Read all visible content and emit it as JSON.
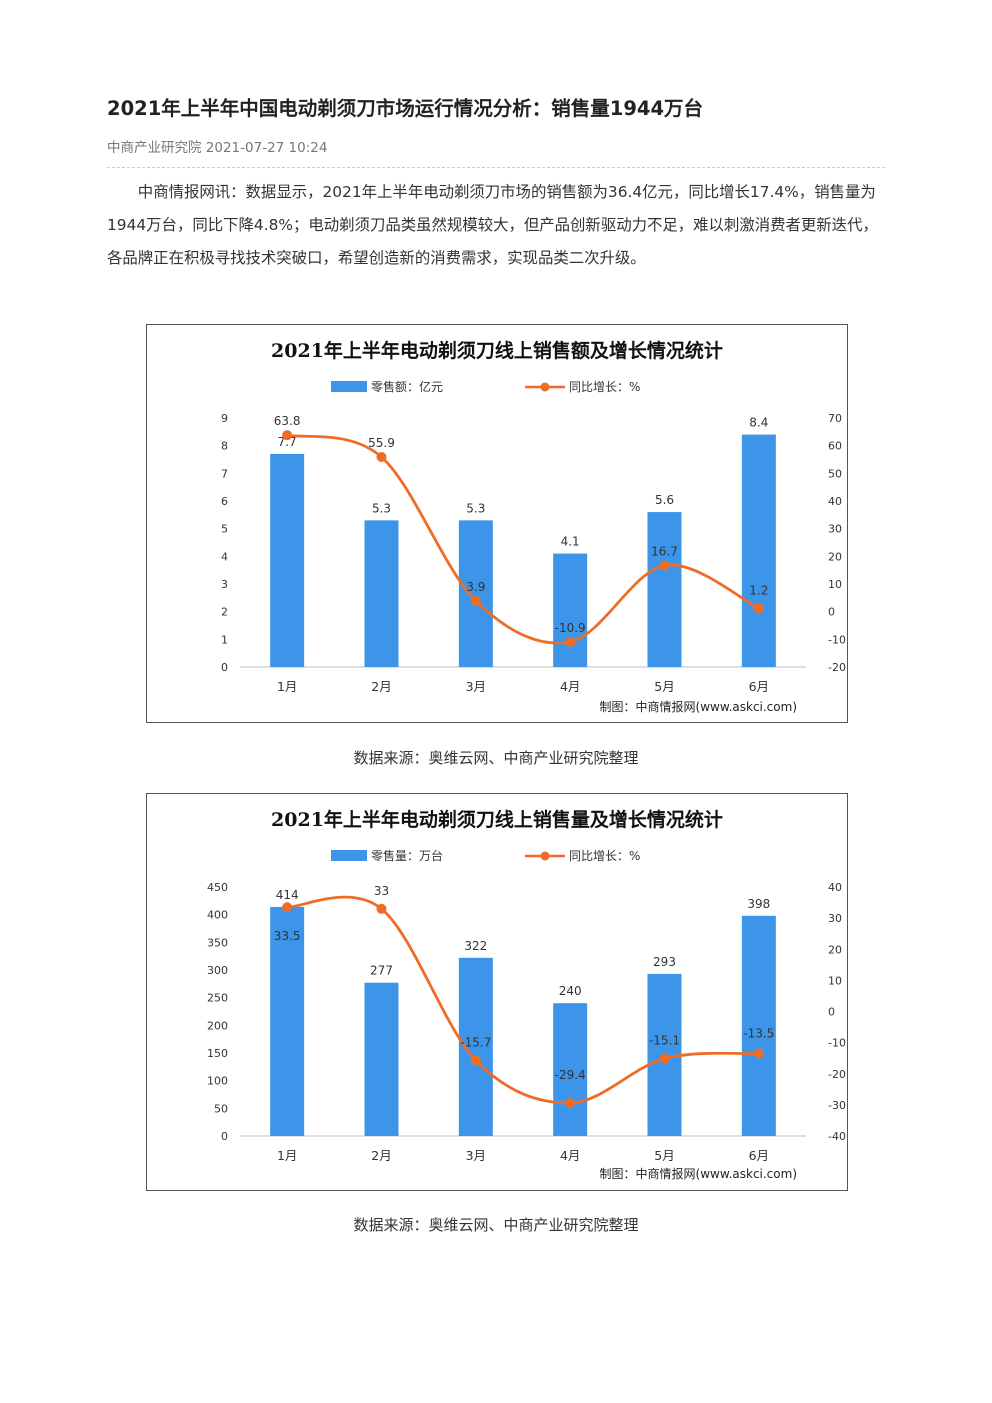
{
  "article": {
    "title": "2021年上半年中国电动剃须刀市场运行情况分析：销售量1944万台",
    "meta": "中商产业研究院 2021-07-27 10:24",
    "paragraph": "中商情报网讯：数据显示，2021年上半年电动剃须刀市场的销售额为36.4亿元，同比增长17.4%，销售量为1944万台，同比下降4.8%；电动剃须刀品类虽然规模较大，但产品创新驱动力不足，难以刺激消费者更新迭代，各品牌正在积极寻找技术突破口，希望创造新的消费需求，实现品类二次升级。",
    "caption1": "数据来源：奥维云网、中商产业研究院整理",
    "caption2": "数据来源：奥维云网、中商产业研究院整理"
  },
  "colors": {
    "bar": "#3d95ea",
    "line": "#ef6c27",
    "grid": "#d9d9d9",
    "brand": "#2e7fd6"
  },
  "chart_data": [
    {
      "type": "bar",
      "title": "2021年上半年电动剃须刀线上销售额及增长情况统计",
      "categories": [
        "1月",
        "2月",
        "3月",
        "4月",
        "5月",
        "6月"
      ],
      "series": [
        {
          "name": "零售额：亿元",
          "type": "bar",
          "axis": "left",
          "values": [
            7.7,
            5.3,
            5.3,
            4.1,
            5.6,
            8.4
          ]
        },
        {
          "name": "同比增长：%",
          "type": "line",
          "axis": "right",
          "values": [
            63.8,
            55.9,
            3.9,
            -10.9,
            16.7,
            1.2
          ]
        }
      ],
      "bar_labels": [
        "7.7",
        "5.3",
        "5.3",
        "4.1",
        "5.6",
        "8.4"
      ],
      "line_labels": [
        "63.8",
        "55.9",
        "3.9",
        "-10.9",
        "16.7",
        "1.2"
      ],
      "ylim_left": [
        0,
        9
      ],
      "yticks_left": [
        "0",
        "1",
        "2",
        "3",
        "4",
        "5",
        "6",
        "7",
        "8",
        "9"
      ],
      "ylim_right": [
        -20,
        70
      ],
      "yticks_right": [
        "-20",
        "-10",
        "0",
        "10",
        "20",
        "30",
        "40",
        "50",
        "60",
        "70"
      ],
      "legend_position": "top",
      "grid": false,
      "source_note": "制图：中商情报网(www.askci.com)"
    },
    {
      "type": "bar",
      "title": "2021年上半年电动剃须刀线上销售量及增长情况统计",
      "categories": [
        "1月",
        "2月",
        "3月",
        "4月",
        "5月",
        "6月"
      ],
      "series": [
        {
          "name": "零售量：万台",
          "type": "bar",
          "axis": "left",
          "values": [
            414,
            277,
            322,
            240,
            293,
            398
          ]
        },
        {
          "name": "同比增长：%",
          "type": "line",
          "axis": "right",
          "values": [
            33.5,
            33,
            -15.7,
            -29.4,
            -15.1,
            -13.5
          ]
        }
      ],
      "bar_labels": [
        "414",
        "277",
        "322",
        "240",
        "293",
        "398"
      ],
      "line_labels": [
        "33.5",
        "33",
        "-15.7",
        "-29.4",
        "-15.1",
        "-13.5"
      ],
      "ylim_left": [
        0,
        450
      ],
      "yticks_left": [
        "0",
        "50",
        "100",
        "150",
        "200",
        "250",
        "300",
        "350",
        "400",
        "450"
      ],
      "ylim_right": [
        -40,
        40
      ],
      "yticks_right": [
        "-40",
        "-30",
        "-20",
        "-10",
        "0",
        "10",
        "20",
        "30",
        "40"
      ],
      "legend_position": "top",
      "grid": false,
      "source_note": "制图：中商情报网(www.askci.com)"
    }
  ]
}
